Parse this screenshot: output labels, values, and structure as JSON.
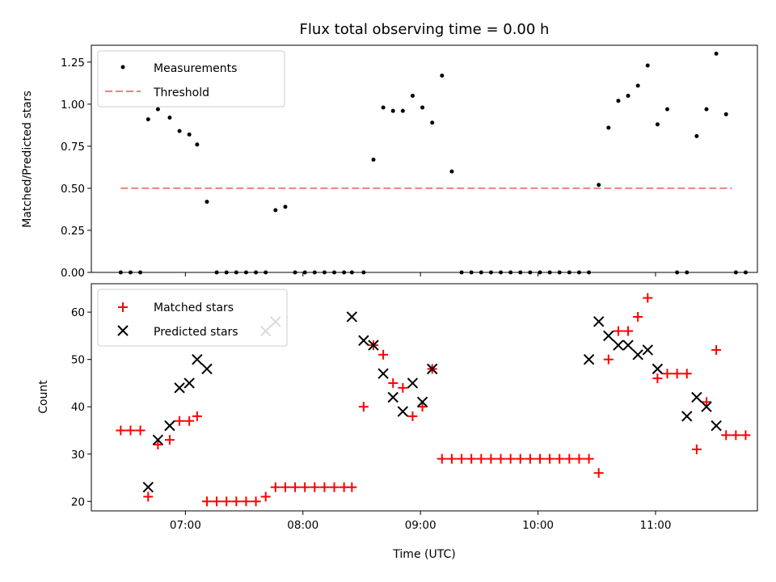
{
  "chart_data": [
    {
      "type": "scatter",
      "title": "Flux total observing time = 0.00 h",
      "xlabel": "",
      "ylabel": "Matched/Predicted stars",
      "ylim": [
        0,
        1.35
      ],
      "yticks": [
        "0.00",
        "0.25",
        "0.50",
        "0.75",
        "1.00",
        "1.25"
      ],
      "grid": false,
      "legend_position": "top-left",
      "colors": {
        "measurements": "#000000",
        "threshold": "#f08080"
      },
      "series": [
        {
          "name": "Measurements",
          "x": [
            "06:27",
            "06:32",
            "06:37",
            "06:41",
            "06:46",
            "06:52",
            "06:57",
            "07:02",
            "07:06",
            "07:11",
            "07:16",
            "07:21",
            "07:26",
            "07:31",
            "07:36",
            "07:41",
            "07:46",
            "07:51",
            "07:56",
            "08:01",
            "08:06",
            "08:11",
            "08:16",
            "08:21",
            "08:25",
            "08:31",
            "08:36",
            "08:41",
            "08:46",
            "08:51",
            "08:56",
            "09:01",
            "09:06",
            "09:11",
            "09:16",
            "09:21",
            "09:26",
            "09:31",
            "09:36",
            "09:41",
            "09:46",
            "09:51",
            "09:56",
            "10:01",
            "10:06",
            "10:11",
            "10:16",
            "10:21",
            "10:26",
            "10:31",
            "10:36",
            "10:41",
            "10:46",
            "10:51",
            "10:56",
            "11:01",
            "11:06",
            "11:11",
            "11:16",
            "11:21",
            "11:26",
            "11:31",
            "11:36",
            "11:41",
            "11:46"
          ],
          "values": [
            0,
            0,
            0,
            0.91,
            0.97,
            0.92,
            0.84,
            0.82,
            0.76,
            0.42,
            0,
            0,
            0,
            0,
            0,
            0,
            0.37,
            0.39,
            0,
            0,
            0,
            0,
            0,
            0,
            0,
            0,
            0.67,
            0.98,
            0.96,
            0.96,
            1.05,
            0.98,
            0.89,
            1.17,
            0.6,
            0,
            0,
            0,
            0,
            0,
            0,
            0,
            0,
            0,
            0,
            0,
            0,
            0,
            0,
            0.52,
            0.86,
            1.02,
            1.05,
            1.11,
            1.23,
            0.88,
            0.97,
            0,
            0,
            0.81,
            0.97,
            1.3,
            0.94,
            0,
            0
          ]
        },
        {
          "name": "Threshold",
          "x": [
            "06:27",
            "11:39"
          ],
          "values": [
            0.5,
            0.5
          ]
        }
      ]
    },
    {
      "type": "scatter",
      "title": "",
      "xlabel": "Time (UTC)",
      "ylabel": "Count",
      "ylim": [
        18,
        66
      ],
      "yticks": [
        "20",
        "30",
        "40",
        "50",
        "60"
      ],
      "xlim": [
        "06:12",
        "11:52"
      ],
      "xticks": [
        "07:00",
        "08:00",
        "09:00",
        "10:00",
        "11:00"
      ],
      "grid": false,
      "legend_position": "top-left",
      "colors": {
        "matched": "#ff0000",
        "predicted": "#000000"
      },
      "series": [
        {
          "name": "Matched stars",
          "x": [
            "06:27",
            "06:32",
            "06:37",
            "06:41",
            "06:46",
            "06:52",
            "06:57",
            "07:02",
            "07:06",
            "07:11",
            "07:16",
            "07:21",
            "07:26",
            "07:31",
            "07:36",
            "07:41",
            "07:46",
            "07:51",
            "07:56",
            "08:01",
            "08:06",
            "08:11",
            "08:16",
            "08:21",
            "08:25",
            "08:31",
            "08:36",
            "08:41",
            "08:46",
            "08:51",
            "08:56",
            "09:01",
            "09:06",
            "09:11",
            "09:16",
            "09:21",
            "09:26",
            "09:31",
            "09:36",
            "09:41",
            "09:46",
            "09:51",
            "09:56",
            "10:01",
            "10:06",
            "10:11",
            "10:16",
            "10:21",
            "10:26",
            "10:31",
            "10:36",
            "10:41",
            "10:46",
            "10:51",
            "10:56",
            "11:01",
            "11:06",
            "11:11",
            "11:16",
            "11:21",
            "11:26",
            "11:31",
            "11:36",
            "11:41",
            "11:46"
          ],
          "values": [
            35,
            35,
            35,
            21,
            32,
            33,
            37,
            37,
            38,
            20,
            20,
            20,
            20,
            20,
            20,
            21,
            23,
            23,
            23,
            23,
            23,
            23,
            23,
            23,
            23,
            40,
            53,
            51,
            45,
            44,
            38,
            40,
            48,
            29,
            29,
            29,
            29,
            29,
            29,
            29,
            29,
            29,
            29,
            29,
            29,
            29,
            29,
            29,
            29,
            26,
            50,
            56,
            56,
            59,
            63,
            46,
            47,
            47,
            47,
            31,
            41,
            52,
            34,
            34,
            34
          ]
        },
        {
          "name": "Predicted stars",
          "x": [
            "06:41",
            "06:46",
            "06:52",
            "06:57",
            "07:02",
            "07:06",
            "07:11",
            "07:41",
            "07:46",
            "08:25",
            "08:31",
            "08:36",
            "08:41",
            "08:46",
            "08:51",
            "08:56",
            "09:01",
            "09:06",
            "10:26",
            "10:31",
            "10:36",
            "10:41",
            "10:46",
            "10:51",
            "10:56",
            "11:01",
            "11:16",
            "11:21",
            "11:26",
            "11:31"
          ],
          "values": [
            23,
            33,
            36,
            44,
            45,
            50,
            48,
            56,
            58,
            59,
            54,
            53,
            47,
            42,
            39,
            45,
            41,
            48,
            50,
            58,
            55,
            53,
            53,
            51,
            52,
            48,
            38,
            42,
            40,
            36
          ]
        }
      ]
    }
  ]
}
